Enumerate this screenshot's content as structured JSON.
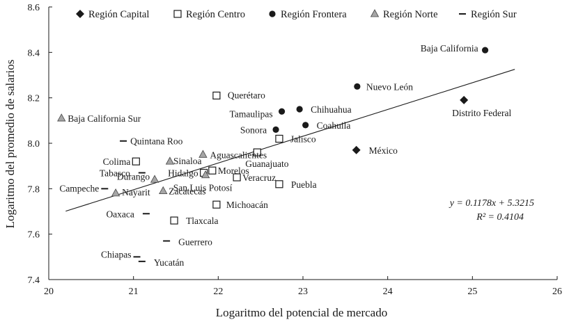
{
  "chart_data": {
    "type": "scatter",
    "xlabel": "Logaritmo del potencial de mercado",
    "ylabel": "Logaritmo del promedio de salarios",
    "xlim": [
      20,
      26
    ],
    "ylim": [
      7.4,
      8.6
    ],
    "xticks": [
      20,
      21,
      22,
      23,
      24,
      25,
      26
    ],
    "yticks": [
      7.4,
      7.6,
      7.8,
      8.0,
      8.2,
      8.4,
      8.6
    ],
    "legend_position": "top",
    "series": [
      {
        "name": "Región Capital",
        "marker": "diamond",
        "color": "#1a1a1a",
        "points": [
          {
            "label": "Distrito Federal",
            "x": 24.9,
            "y": 8.19
          },
          {
            "label": "México",
            "x": 23.63,
            "y": 7.97
          }
        ]
      },
      {
        "name": "Región Centro",
        "marker": "square",
        "color": "#1a1a1a",
        "points": [
          {
            "label": "Querétaro",
            "x": 21.98,
            "y": 8.21
          },
          {
            "label": "Jalisco",
            "x": 22.72,
            "y": 8.02
          },
          {
            "label": "Guanajuato",
            "x": 22.46,
            "y": 7.96
          },
          {
            "label": "Colima",
            "x": 21.03,
            "y": 7.92
          },
          {
            "label": "Morelos",
            "x": 21.93,
            "y": 7.88
          },
          {
            "label": "Hidalgo",
            "x": 21.83,
            "y": 7.87
          },
          {
            "label": "Veracruz",
            "x": 22.22,
            "y": 7.85
          },
          {
            "label": "Puebla",
            "x": 22.72,
            "y": 7.82
          },
          {
            "label": "Michoacán",
            "x": 21.98,
            "y": 7.73
          },
          {
            "label": "Tlaxcala",
            "x": 21.48,
            "y": 7.66
          }
        ]
      },
      {
        "name": "Región Frontera",
        "marker": "circle",
        "color": "#1a1a1a",
        "points": [
          {
            "label": "Baja California",
            "x": 25.15,
            "y": 8.41
          },
          {
            "label": "Nuevo León",
            "x": 23.64,
            "y": 8.25
          },
          {
            "label": "Chihuahua",
            "x": 22.96,
            "y": 8.15
          },
          {
            "label": "Tamaulipas",
            "x": 22.75,
            "y": 8.14
          },
          {
            "label": "Coahuila",
            "x": 23.03,
            "y": 8.08
          },
          {
            "label": "Sonora",
            "x": 22.68,
            "y": 8.06
          }
        ]
      },
      {
        "name": "Región Norte",
        "marker": "triangle",
        "color": "#a6a6a6",
        "points": [
          {
            "label": "Baja California Sur",
            "x": 20.15,
            "y": 8.11
          },
          {
            "label": "Aguascalientes",
            "x": 21.82,
            "y": 7.95
          },
          {
            "label": "Sinaloa",
            "x": 21.43,
            "y": 7.92
          },
          {
            "label": "San Luis Potosí",
            "x": 21.85,
            "y": 7.86
          },
          {
            "label": "Durango",
            "x": 21.25,
            "y": 7.84
          },
          {
            "label": "Nayarit",
            "x": 20.79,
            "y": 7.78
          },
          {
            "label": "Zacatecas",
            "x": 21.35,
            "y": 7.79
          }
        ]
      },
      {
        "name": "Región Sur",
        "marker": "dash",
        "color": "#1a1a1a",
        "points": [
          {
            "label": "Quintana Roo",
            "x": 20.88,
            "y": 8.01
          },
          {
            "label": "Tabasco",
            "x": 21.1,
            "y": 7.87
          },
          {
            "label": "Campeche",
            "x": 20.66,
            "y": 7.8
          },
          {
            "label": "Oaxaca",
            "x": 21.15,
            "y": 7.69
          },
          {
            "label": "Guerrero",
            "x": 21.39,
            "y": 7.57
          },
          {
            "label": "Chiapas",
            "x": 21.04,
            "y": 7.5
          },
          {
            "label": "Yucatán",
            "x": 21.1,
            "y": 7.48
          }
        ]
      }
    ],
    "trendline": {
      "slope": 0.1178,
      "intercept": 5.3215,
      "x_range": [
        20.2,
        25.5
      ]
    },
    "annotations": {
      "equation": "y = 0.1178x + 5.3215",
      "r_squared": "R² = 0.4104"
    }
  }
}
